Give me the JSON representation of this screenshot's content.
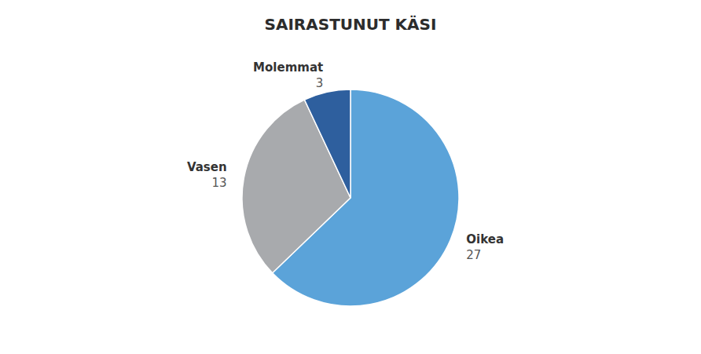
{
  "chart_data": {
    "type": "pie",
    "title": "SAIRASTUNUT KÄSI",
    "categories": [
      "Oikea",
      "Vasen",
      "Molemmat"
    ],
    "values": [
      27,
      13,
      3
    ],
    "colors": [
      "#5BA3D9",
      "#A8AAAD",
      "#2E5F9E"
    ],
    "data_labels": true
  }
}
